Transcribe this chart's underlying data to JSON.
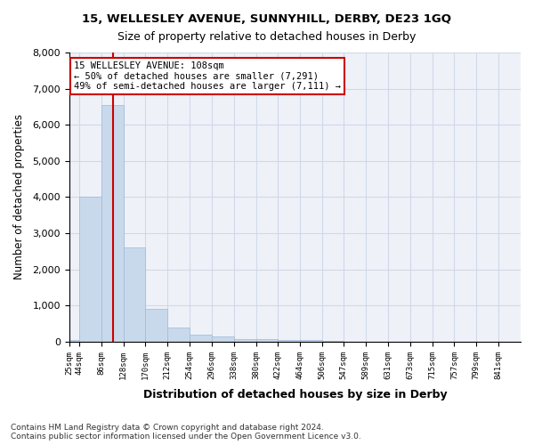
{
  "title1": "15, WELLESLEY AVENUE, SUNNYHILL, DERBY, DE23 1GQ",
  "title2": "Size of property relative to detached houses in Derby",
  "xlabel": "Distribution of detached houses by size in Derby",
  "ylabel": "Number of detached properties",
  "annotation_line1": "15 WELLESLEY AVENUE: 108sqm",
  "annotation_line2": "← 50% of detached houses are smaller (7,291)",
  "annotation_line3": "49% of semi-detached houses are larger (7,111) →",
  "property_size": 108,
  "bar_color": "#c9d9ec",
  "bar_edge_color": "#a0b8d8",
  "vline_color": "#cc0000",
  "annotation_box_color": "#cc0000",
  "grid_color": "#d0d8e8",
  "background_color": "#eef2f8",
  "bin_edges": [
    25,
    44,
    86,
    128,
    170,
    212,
    254,
    296,
    338,
    380,
    422,
    464,
    506,
    547,
    589,
    631,
    673,
    715,
    757,
    799,
    841,
    883
  ],
  "bin_labels": [
    "25sqm",
    "44sqm",
    "86sqm",
    "128sqm",
    "170sqm",
    "212sqm",
    "254sqm",
    "296sqm",
    "338sqm",
    "380sqm",
    "422sqm",
    "464sqm",
    "506sqm",
    "547sqm",
    "589sqm",
    "631sqm",
    "673sqm",
    "715sqm",
    "757sqm",
    "799sqm",
    "841sqm"
  ],
  "counts": [
    50,
    4000,
    6550,
    2600,
    900,
    400,
    200,
    150,
    80,
    60,
    50,
    40,
    20,
    10,
    5,
    3,
    2,
    2,
    1,
    1,
    0
  ],
  "ylim": [
    0,
    8000
  ],
  "yticks": [
    0,
    1000,
    2000,
    3000,
    4000,
    5000,
    6000,
    7000,
    8000
  ],
  "footer1": "Contains HM Land Registry data © Crown copyright and database right 2024.",
  "footer2": "Contains public sector information licensed under the Open Government Licence v3.0."
}
